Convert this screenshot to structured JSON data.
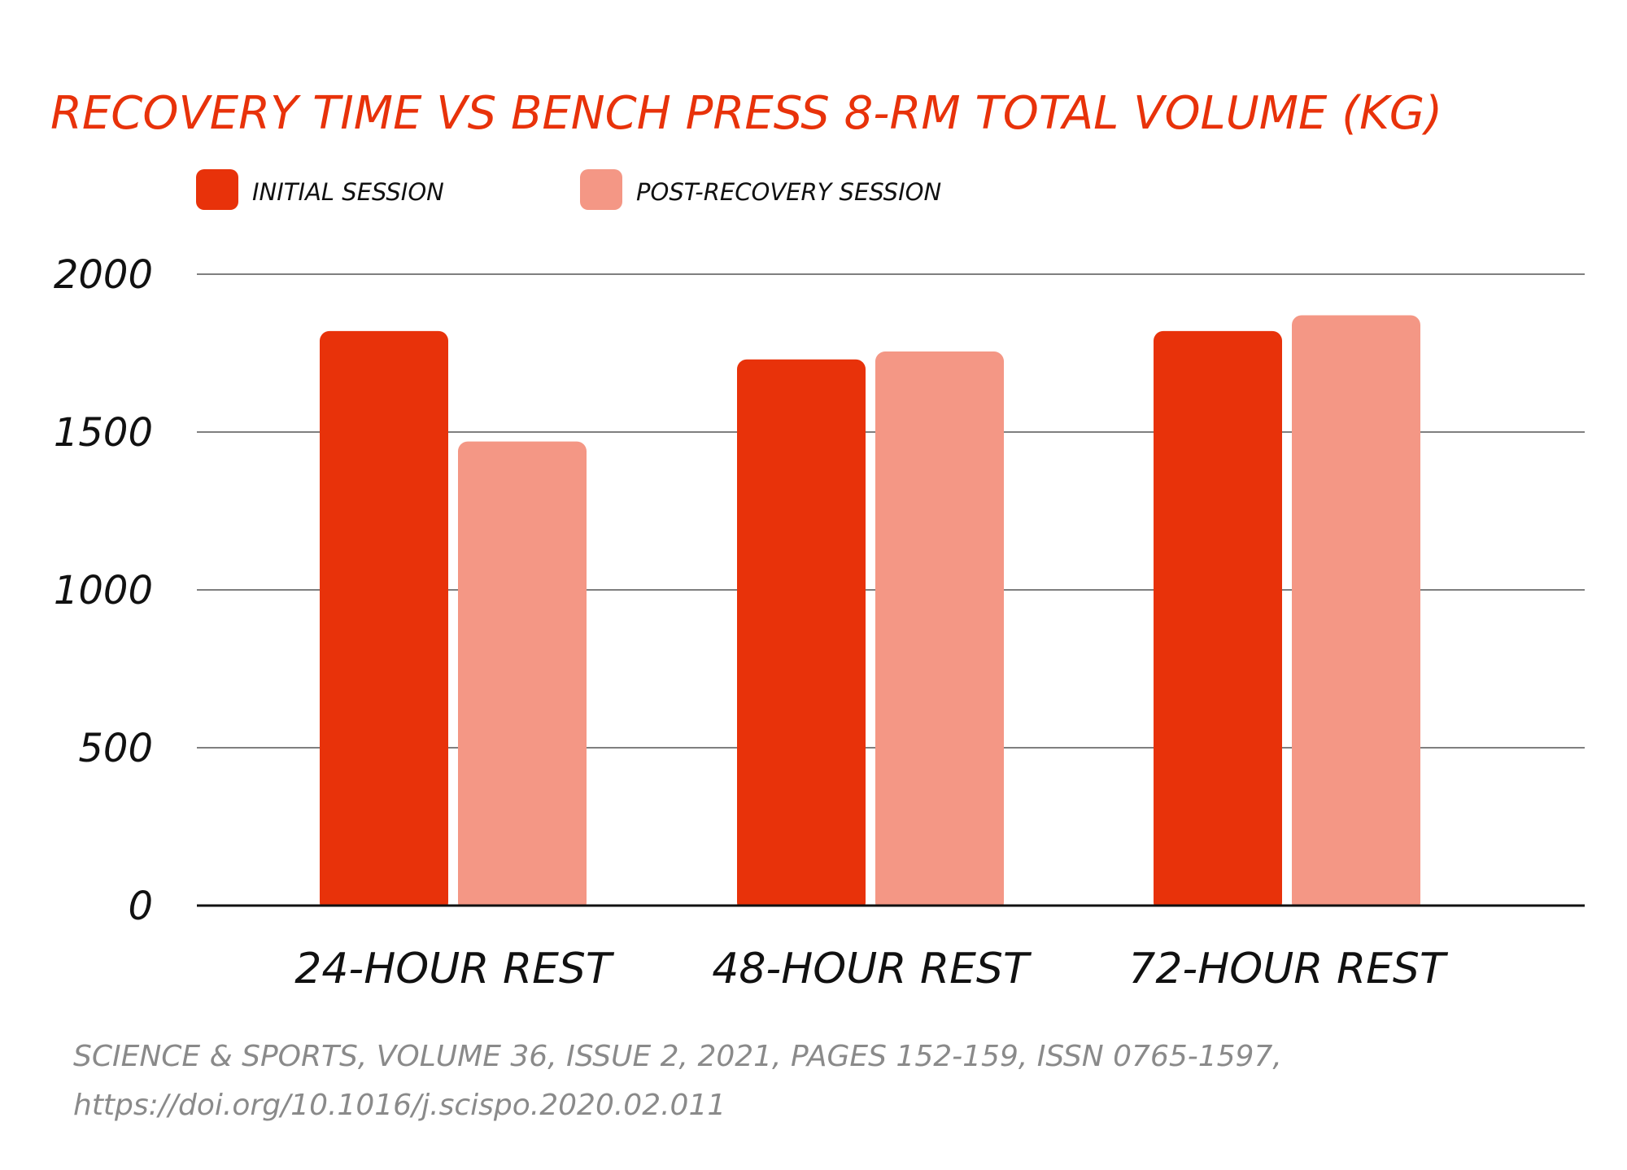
{
  "chart_data": {
    "type": "bar",
    "title": "RECOVERY TIME VS BENCH PRESS 8-RM TOTAL VOLUME (KG)",
    "categories": [
      "24-HOUR REST",
      "48-HOUR REST",
      "72-HOUR REST"
    ],
    "series": [
      {
        "name": "INITIAL SESSION",
        "color": "#e8320a",
        "values": [
          1820,
          1730,
          1820
        ]
      },
      {
        "name": "POST-RECOVERY SESSION",
        "color": "#f49785",
        "values": [
          1470,
          1755,
          1870
        ]
      }
    ],
    "yticks": [
      "0",
      "500",
      "1000",
      "1500",
      "2000"
    ],
    "ylim": [
      0,
      2000
    ],
    "grid": true,
    "legend_position": "top-left"
  },
  "source": {
    "line1": "SCIENCE & SPORTS, VOLUME 36, ISSUE 2, 2021, PAGES 152-159, ISSN 0765-1597,",
    "line2": "https://doi.org/10.1016/j.scispo.2020.02.011"
  }
}
